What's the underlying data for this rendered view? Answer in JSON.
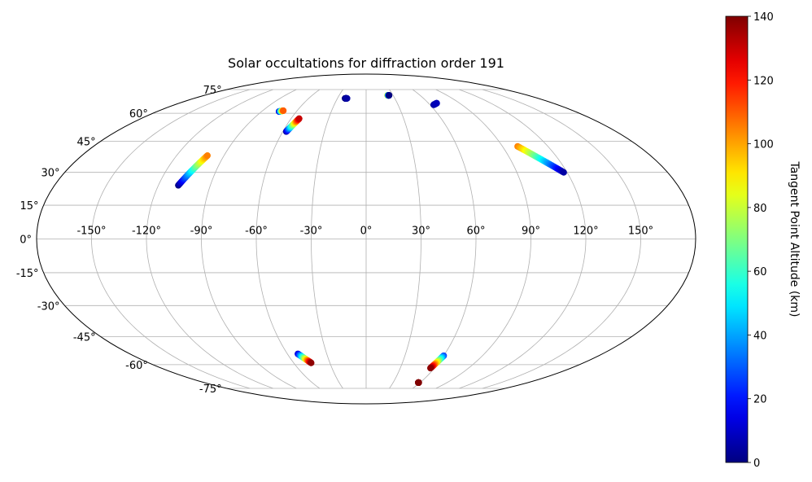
{
  "chart_data": {
    "type": "scatter",
    "projection": "mollweide",
    "title": "Solar occultations for diffraction order 191",
    "x_tick_labels": [
      "-150°",
      "-120°",
      "-90°",
      "-60°",
      "-30°",
      "0°",
      "30°",
      "60°",
      "90°",
      "120°",
      "150°"
    ],
    "x_ticks": [
      -150,
      -120,
      -90,
      -60,
      -30,
      0,
      30,
      60,
      90,
      120,
      150
    ],
    "y_tick_labels": [
      "-75°",
      "-60°",
      "-45°",
      "-30°",
      "-15°",
      "0°",
      "15°",
      "30°",
      "45°",
      "60°",
      "75°"
    ],
    "y_ticks": [
      -75,
      -60,
      -45,
      -30,
      -15,
      0,
      15,
      30,
      45,
      60,
      75
    ],
    "grid": true,
    "colormap": "jet",
    "colorbar": {
      "label": "Tangent Point Altitude (km)",
      "range": [
        0,
        140
      ],
      "tick_labels": [
        "0",
        "20",
        "40",
        "60",
        "80",
        "100",
        "120",
        "140"
      ],
      "ticks": [
        0,
        20,
        40,
        60,
        80,
        100,
        120,
        140
      ],
      "placement": "right"
    },
    "tracks": [
      {
        "lon_start": -108.5,
        "lat_start": 24,
        "lon_end": -100.5,
        "lat_end": 38,
        "alt_start": 0,
        "alt_end": 105
      },
      {
        "lon_start": -57.5,
        "lat_start": 50,
        "lon_end": -53.5,
        "lat_end": 57,
        "alt_start": 5,
        "alt_end": 130
      },
      {
        "lon_start": -75,
        "lat_start": 61,
        "lon_end": -72,
        "lat_end": 61.5,
        "alt_start": 5,
        "alt_end": 110
      },
      {
        "lon_start": -22,
        "lat_start": 69,
        "lon_end": -20,
        "lat_end": 69,
        "alt_start": 0,
        "alt_end": 5
      },
      {
        "lon_start": 23.8,
        "lat_start": 71,
        "lon_end": 25.5,
        "lat_end": 71,
        "alt_start": 100,
        "alt_end": 0
      },
      {
        "lon_start": 63.5,
        "lat_start": 65,
        "lon_end": 68,
        "lat_end": 66,
        "alt_start": 5,
        "alt_end": 8
      },
      {
        "lon_start": 100,
        "lat_start": 42.5,
        "lon_end": 118,
        "lat_end": 30,
        "alt_start": 105,
        "alt_end": 5
      },
      {
        "lon_start": -52,
        "lat_start": -54,
        "lon_end": -45.5,
        "lat_end": -59,
        "alt_start": 10,
        "alt_end": 138
      },
      {
        "lon_start": 60,
        "lat_start": -55,
        "lon_end": 56.5,
        "lat_end": -62,
        "alt_start": 25,
        "alt_end": 138
      },
      {
        "lon_start": 58,
        "lat_start": -71,
        "lon_end": 58.5,
        "lat_end": -71,
        "alt_start": 138,
        "alt_end": 140
      }
    ]
  }
}
